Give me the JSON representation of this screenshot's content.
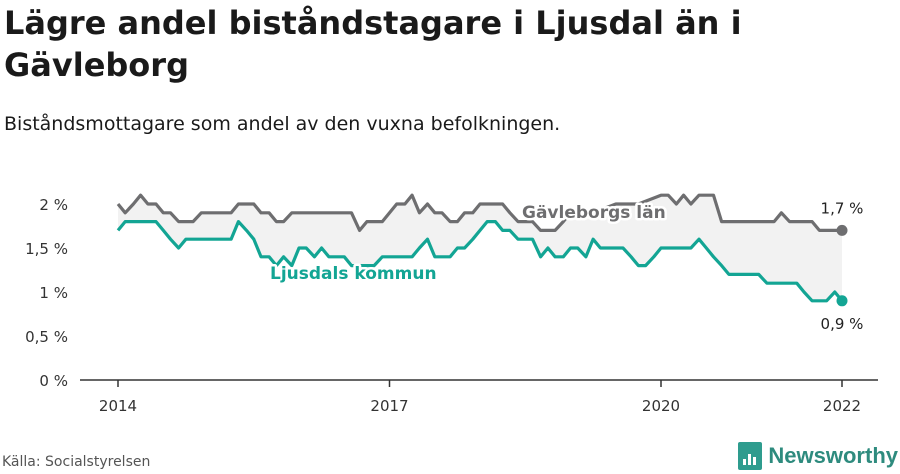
{
  "header": {
    "title": "Lägre andel biståndstagare i Ljusdal än i Gävleborg",
    "subtitle": "Biståndsmottagare som andel av den vuxna befolkningen."
  },
  "footer": {
    "source": "Källa: Socialstyrelsen",
    "brand": "Newsworthy"
  },
  "colors": {
    "gavleborg": "#6e6e70",
    "ljusdal": "#13a594",
    "band": "#f2f2f2",
    "axis": "#333333",
    "brand": "#2e9c8e"
  },
  "chart_data": {
    "type": "line",
    "title": "Lägre andel biståndstagare i Ljusdal än i Gävleborg",
    "subtitle": "Biståndsmottagare som andel av den vuxna befolkningen.",
    "xlabel": "",
    "ylabel": "",
    "xlim": [
      2013.75,
      2022.4
    ],
    "ylim": [
      0,
      2.2
    ],
    "y_ticks": [
      0,
      0.5,
      1,
      1.5,
      2
    ],
    "y_tick_labels": [
      "0 %",
      "0,5 %",
      "1 %",
      "1,5 %",
      "2 %"
    ],
    "x_ticks": [
      2014,
      2017,
      2020,
      2022
    ],
    "x_tick_labels": [
      "2014",
      "2017",
      "2020",
      "2022"
    ],
    "grid": false,
    "series": [
      {
        "name": "Gävleborgs län",
        "end_label": "1,7 %",
        "points": [
          [
            2014.0,
            2.0
          ],
          [
            2014.08,
            1.9
          ],
          [
            2014.17,
            2.0
          ],
          [
            2014.25,
            2.1
          ],
          [
            2014.33,
            2.0
          ],
          [
            2014.42,
            2.0
          ],
          [
            2014.5,
            1.9
          ],
          [
            2014.58,
            1.9
          ],
          [
            2014.67,
            1.8
          ],
          [
            2014.83,
            1.8
          ],
          [
            2014.92,
            1.9
          ],
          [
            2015.17,
            1.9
          ],
          [
            2015.25,
            1.9
          ],
          [
            2015.33,
            2.0
          ],
          [
            2015.5,
            2.0
          ],
          [
            2015.58,
            1.9
          ],
          [
            2015.67,
            1.9
          ],
          [
            2015.75,
            1.8
          ],
          [
            2015.83,
            1.8
          ],
          [
            2015.92,
            1.9
          ],
          [
            2016.0,
            1.9
          ],
          [
            2016.08,
            1.9
          ],
          [
            2016.25,
            1.9
          ],
          [
            2016.42,
            1.9
          ],
          [
            2016.58,
            1.9
          ],
          [
            2016.67,
            1.7
          ],
          [
            2016.75,
            1.8
          ],
          [
            2016.92,
            1.8
          ],
          [
            2017.08,
            2.0
          ],
          [
            2017.17,
            2.0
          ],
          [
            2017.25,
            2.1
          ],
          [
            2017.33,
            1.9
          ],
          [
            2017.42,
            2.0
          ],
          [
            2017.5,
            1.9
          ],
          [
            2017.58,
            1.9
          ],
          [
            2017.67,
            1.8
          ],
          [
            2017.75,
            1.8
          ],
          [
            2017.83,
            1.9
          ],
          [
            2017.92,
            1.9
          ],
          [
            2018.0,
            2.0
          ],
          [
            2018.25,
            2.0
          ],
          [
            2018.33,
            1.9
          ],
          [
            2018.42,
            1.8
          ],
          [
            2018.5,
            1.8
          ],
          [
            2018.58,
            1.8
          ],
          [
            2018.67,
            1.7
          ],
          [
            2018.83,
            1.7
          ],
          [
            2018.92,
            1.8
          ],
          [
            2019.0,
            1.9
          ],
          [
            2019.25,
            1.9
          ],
          [
            2019.5,
            2.0
          ],
          [
            2019.75,
            2.0
          ],
          [
            2020.0,
            2.1
          ],
          [
            2020.08,
            2.1
          ],
          [
            2020.17,
            2.0
          ],
          [
            2020.25,
            2.1
          ],
          [
            2020.33,
            2.0
          ],
          [
            2020.42,
            2.1
          ],
          [
            2020.58,
            2.1
          ],
          [
            2020.67,
            1.8
          ],
          [
            2020.83,
            1.8
          ],
          [
            2021.0,
            1.8
          ],
          [
            2021.17,
            1.8
          ],
          [
            2021.25,
            1.8
          ],
          [
            2021.33,
            1.9
          ],
          [
            2021.42,
            1.8
          ],
          [
            2021.67,
            1.8
          ],
          [
            2021.75,
            1.7
          ],
          [
            2021.83,
            1.7
          ],
          [
            2022.0,
            1.7
          ]
        ]
      },
      {
        "name": "Ljusdals kommun",
        "end_label": "0,9 %",
        "points": [
          [
            2014.0,
            1.7
          ],
          [
            2014.08,
            1.8
          ],
          [
            2014.17,
            1.8
          ],
          [
            2014.25,
            1.8
          ],
          [
            2014.42,
            1.8
          ],
          [
            2014.5,
            1.7
          ],
          [
            2014.58,
            1.6
          ],
          [
            2014.67,
            1.5
          ],
          [
            2014.75,
            1.6
          ],
          [
            2015.0,
            1.6
          ],
          [
            2015.17,
            1.6
          ],
          [
            2015.25,
            1.6
          ],
          [
            2015.33,
            1.8
          ],
          [
            2015.42,
            1.7
          ],
          [
            2015.5,
            1.6
          ],
          [
            2015.58,
            1.4
          ],
          [
            2015.67,
            1.4
          ],
          [
            2015.75,
            1.3
          ],
          [
            2015.83,
            1.4
          ],
          [
            2015.92,
            1.3
          ],
          [
            2016.0,
            1.5
          ],
          [
            2016.08,
            1.5
          ],
          [
            2016.17,
            1.4
          ],
          [
            2016.25,
            1.5
          ],
          [
            2016.33,
            1.4
          ],
          [
            2016.42,
            1.4
          ],
          [
            2016.5,
            1.4
          ],
          [
            2016.58,
            1.3
          ],
          [
            2016.67,
            1.3
          ],
          [
            2016.75,
            1.3
          ],
          [
            2016.83,
            1.3
          ],
          [
            2016.92,
            1.4
          ],
          [
            2017.0,
            1.4
          ],
          [
            2017.17,
            1.4
          ],
          [
            2017.25,
            1.4
          ],
          [
            2017.33,
            1.5
          ],
          [
            2017.42,
            1.6
          ],
          [
            2017.5,
            1.4
          ],
          [
            2017.58,
            1.4
          ],
          [
            2017.67,
            1.4
          ],
          [
            2017.75,
            1.5
          ],
          [
            2017.83,
            1.5
          ],
          [
            2017.92,
            1.6
          ],
          [
            2018.0,
            1.7
          ],
          [
            2018.08,
            1.8
          ],
          [
            2018.17,
            1.8
          ],
          [
            2018.25,
            1.7
          ],
          [
            2018.33,
            1.7
          ],
          [
            2018.42,
            1.6
          ],
          [
            2018.58,
            1.6
          ],
          [
            2018.67,
            1.4
          ],
          [
            2018.75,
            1.5
          ],
          [
            2018.83,
            1.4
          ],
          [
            2018.92,
            1.4
          ],
          [
            2019.0,
            1.5
          ],
          [
            2019.08,
            1.5
          ],
          [
            2019.17,
            1.4
          ],
          [
            2019.25,
            1.6
          ],
          [
            2019.33,
            1.5
          ],
          [
            2019.5,
            1.5
          ],
          [
            2019.58,
            1.5
          ],
          [
            2019.67,
            1.4
          ],
          [
            2019.75,
            1.3
          ],
          [
            2019.83,
            1.3
          ],
          [
            2019.92,
            1.4
          ],
          [
            2020.0,
            1.5
          ],
          [
            2020.25,
            1.5
          ],
          [
            2020.33,
            1.5
          ],
          [
            2020.42,
            1.6
          ],
          [
            2020.5,
            1.5
          ],
          [
            2020.58,
            1.4
          ],
          [
            2020.67,
            1.3
          ],
          [
            2020.75,
            1.2
          ],
          [
            2021.0,
            1.2
          ],
          [
            2021.08,
            1.2
          ],
          [
            2021.17,
            1.1
          ],
          [
            2021.5,
            1.1
          ],
          [
            2021.58,
            1.0
          ],
          [
            2021.67,
            0.9
          ],
          [
            2021.83,
            0.9
          ],
          [
            2021.92,
            1.0
          ],
          [
            2022.0,
            0.9
          ]
        ]
      }
    ]
  }
}
